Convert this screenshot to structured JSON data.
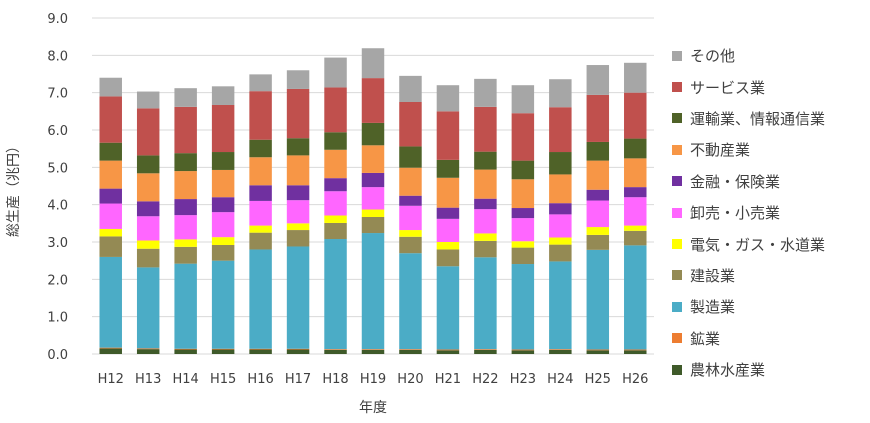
{
  "chart_data": {
    "type": "bar",
    "stacked": true,
    "xlabel": "年度",
    "ylabel": "総生産（兆円）",
    "ylim": [
      0,
      9
    ],
    "yticks": [
      "0.0",
      "1.0",
      "2.0",
      "3.0",
      "4.0",
      "5.0",
      "6.0",
      "7.0",
      "8.0",
      "9.0"
    ],
    "grid": "horizontal",
    "legend_position": "right",
    "categories": [
      "H12",
      "H13",
      "H14",
      "H15",
      "H16",
      "H17",
      "H18",
      "H19",
      "H20",
      "H21",
      "H22",
      "H23",
      "H24",
      "H25",
      "H26"
    ],
    "series": [
      {
        "name": "農林水産業",
        "color": "#3f5a2a",
        "values": [
          0.15,
          0.13,
          0.12,
          0.12,
          0.12,
          0.12,
          0.11,
          0.11,
          0.11,
          0.1,
          0.11,
          0.1,
          0.11,
          0.1,
          0.1
        ]
      },
      {
        "name": "鉱業",
        "color": "#ed7d31",
        "values": [
          0.02,
          0.02,
          0.02,
          0.02,
          0.02,
          0.02,
          0.02,
          0.02,
          0.02,
          0.02,
          0.02,
          0.02,
          0.02,
          0.02,
          0.02
        ]
      },
      {
        "name": "製造業",
        "color": "#4bacc6",
        "values": [
          2.43,
          2.17,
          2.28,
          2.36,
          2.66,
          2.74,
          2.95,
          3.11,
          2.57,
          2.23,
          2.46,
          2.29,
          2.35,
          2.67,
          2.79
        ]
      },
      {
        "name": "建設業",
        "color": "#948a54",
        "values": [
          0.55,
          0.5,
          0.45,
          0.42,
          0.45,
          0.44,
          0.43,
          0.43,
          0.44,
          0.45,
          0.44,
          0.44,
          0.45,
          0.4,
          0.39
        ]
      },
      {
        "name": "電気・ガス・水道業",
        "color": "#ffff00",
        "values": [
          0.2,
          0.22,
          0.2,
          0.21,
          0.19,
          0.18,
          0.2,
          0.2,
          0.18,
          0.2,
          0.2,
          0.17,
          0.19,
          0.21,
          0.14
        ]
      },
      {
        "name": "卸売・小売業",
        "color": "#ff66ff",
        "values": [
          0.68,
          0.65,
          0.65,
          0.67,
          0.66,
          0.62,
          0.65,
          0.6,
          0.65,
          0.62,
          0.65,
          0.62,
          0.62,
          0.71,
          0.76
        ]
      },
      {
        "name": "金融・保険業",
        "color": "#7030a0",
        "values": [
          0.4,
          0.4,
          0.43,
          0.4,
          0.42,
          0.4,
          0.35,
          0.38,
          0.27,
          0.3,
          0.28,
          0.27,
          0.3,
          0.29,
          0.27
        ]
      },
      {
        "name": "不動産業",
        "color": "#f79646",
        "values": [
          0.75,
          0.75,
          0.75,
          0.73,
          0.75,
          0.8,
          0.76,
          0.74,
          0.75,
          0.8,
          0.78,
          0.77,
          0.77,
          0.78,
          0.77
        ]
      },
      {
        "name": "運輸業、情報通信業",
        "color": "#4f6228",
        "values": [
          0.48,
          0.48,
          0.48,
          0.48,
          0.47,
          0.46,
          0.47,
          0.6,
          0.57,
          0.48,
          0.48,
          0.5,
          0.6,
          0.5,
          0.53
        ]
      },
      {
        "name": "サービス業",
        "color": "#c0504d",
        "values": [
          1.24,
          1.26,
          1.24,
          1.26,
          1.3,
          1.32,
          1.2,
          1.2,
          1.19,
          1.3,
          1.2,
          1.27,
          1.2,
          1.26,
          1.23
        ]
      },
      {
        "name": "その他",
        "color": "#a6a6a6",
        "values": [
          0.5,
          0.45,
          0.5,
          0.5,
          0.45,
          0.5,
          0.8,
          0.8,
          0.7,
          0.7,
          0.75,
          0.75,
          0.75,
          0.8,
          0.8
        ]
      }
    ]
  }
}
